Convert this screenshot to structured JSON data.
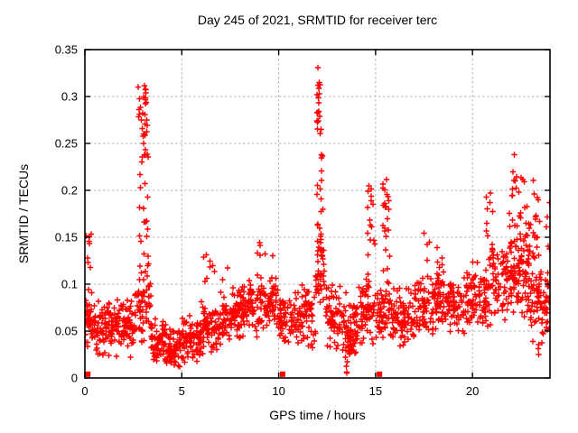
{
  "chart_data": {
    "type": "scatter",
    "title": "Day 245 of 2021, SRMTID for receiver terc",
    "xlabel": "GPS time / hours",
    "ylabel": "SRMTID / TECUs",
    "xlim": [
      0,
      24
    ],
    "ylim": [
      0,
      0.35
    ],
    "xticks": {
      "values": [
        0,
        5,
        10,
        15,
        20
      ],
      "labels": [
        "0",
        "5",
        "10",
        "15",
        "20"
      ]
    },
    "yticks": {
      "values": [
        0,
        0.05,
        0.1,
        0.15,
        0.2,
        0.25,
        0.3,
        0.35
      ],
      "labels": [
        "0",
        "0.05",
        "0.1",
        "0.15",
        "0.2",
        "0.25",
        "0.3",
        "0.35"
      ]
    },
    "grid": {
      "on": true,
      "style": "dashed",
      "color": "#b3b3b3"
    },
    "legend": "none",
    "marker_color": "#ff0000",
    "marker_shape": "plus",
    "background": "#ffffff",
    "border_color": "#000000",
    "seed": 42,
    "series": [
      {
        "name": "srmtid-baseline-band",
        "note": "dense 30s-cadence scatter; segments are [x_start, x_end, n_points, y_min, y_max]",
        "dist": "band",
        "segments": [
          [
            0.0,
            0.5,
            40,
            0.025,
            0.095
          ],
          [
            0.5,
            1.5,
            80,
            0.02,
            0.085
          ],
          [
            1.5,
            2.6,
            85,
            0.02,
            0.09
          ],
          [
            2.6,
            3.4,
            55,
            0.03,
            0.125
          ],
          [
            3.4,
            4.2,
            70,
            0.008,
            0.065
          ],
          [
            4.2,
            5.0,
            70,
            0.005,
            0.055
          ],
          [
            5.0,
            6.0,
            78,
            0.015,
            0.07
          ],
          [
            6.0,
            7.0,
            78,
            0.02,
            0.09
          ],
          [
            7.0,
            8.0,
            78,
            0.035,
            0.1
          ],
          [
            8.0,
            9.0,
            78,
            0.04,
            0.105
          ],
          [
            9.0,
            10.0,
            72,
            0.05,
            0.11
          ],
          [
            10.0,
            11.0,
            72,
            0.03,
            0.095
          ],
          [
            11.0,
            11.9,
            62,
            0.03,
            0.1
          ],
          [
            11.9,
            12.4,
            36,
            0.05,
            0.155
          ],
          [
            12.4,
            13.2,
            62,
            0.025,
            0.11
          ],
          [
            13.2,
            14.0,
            68,
            0.012,
            0.095
          ],
          [
            14.0,
            15.0,
            70,
            0.03,
            0.11
          ],
          [
            15.0,
            16.0,
            68,
            0.03,
            0.1
          ],
          [
            16.0,
            17.0,
            70,
            0.03,
            0.1
          ],
          [
            17.0,
            18.0,
            70,
            0.04,
            0.11
          ],
          [
            18.0,
            19.0,
            70,
            0.045,
            0.115
          ],
          [
            19.0,
            20.0,
            70,
            0.045,
            0.115
          ],
          [
            20.0,
            21.0,
            70,
            0.05,
            0.125
          ],
          [
            21.0,
            22.0,
            72,
            0.055,
            0.145
          ],
          [
            22.0,
            23.0,
            72,
            0.055,
            0.15
          ],
          [
            23.0,
            23.6,
            46,
            0.035,
            0.13
          ],
          [
            23.6,
            24.0,
            30,
            0.04,
            0.125
          ]
        ]
      },
      {
        "name": "srmtid-tid-spikes",
        "note": "vertical spike columns: [x_start, x_end, n_points, y_min, y_max]; peaks ~0.315 @3h, 0.34 @12.1h, 0.21 @15.5h, 0.25 @22.2h",
        "dist": "column",
        "segments": [
          [
            0.02,
            0.35,
            9,
            0.09,
            0.155
          ],
          [
            2.75,
            3.3,
            42,
            0.1,
            0.315
          ],
          [
            2.9,
            3.2,
            12,
            0.235,
            0.305
          ],
          [
            6.1,
            7.4,
            10,
            0.09,
            0.14
          ],
          [
            8.7,
            9.8,
            10,
            0.1,
            0.145
          ],
          [
            11.95,
            12.3,
            34,
            0.12,
            0.34
          ],
          [
            12.0,
            12.25,
            8,
            0.25,
            0.315
          ],
          [
            14.55,
            15.0,
            16,
            0.11,
            0.205
          ],
          [
            15.35,
            15.75,
            24,
            0.1,
            0.218
          ],
          [
            17.4,
            17.8,
            6,
            0.1,
            0.155
          ],
          [
            18.1,
            18.45,
            9,
            0.1,
            0.165
          ],
          [
            20.7,
            21.05,
            12,
            0.12,
            0.2
          ],
          [
            21.9,
            23.3,
            60,
            0.1,
            0.215
          ],
          [
            22.1,
            22.35,
            5,
            0.2,
            0.25
          ],
          [
            23.2,
            23.5,
            8,
            0.12,
            0.2
          ],
          [
            23.8,
            24.0,
            6,
            0.1,
            0.205
          ],
          [
            13.3,
            13.55,
            6,
            0.004,
            0.03
          ],
          [
            23.3,
            23.6,
            4,
            0.025,
            0.048
          ]
        ]
      },
      {
        "name": "zero-square-markers",
        "dist": "points",
        "marker_shape": "filled-square",
        "points": [
          [
            0.15,
            0.004
          ],
          [
            10.2,
            0.004
          ],
          [
            15.2,
            0.004
          ]
        ]
      }
    ]
  }
}
